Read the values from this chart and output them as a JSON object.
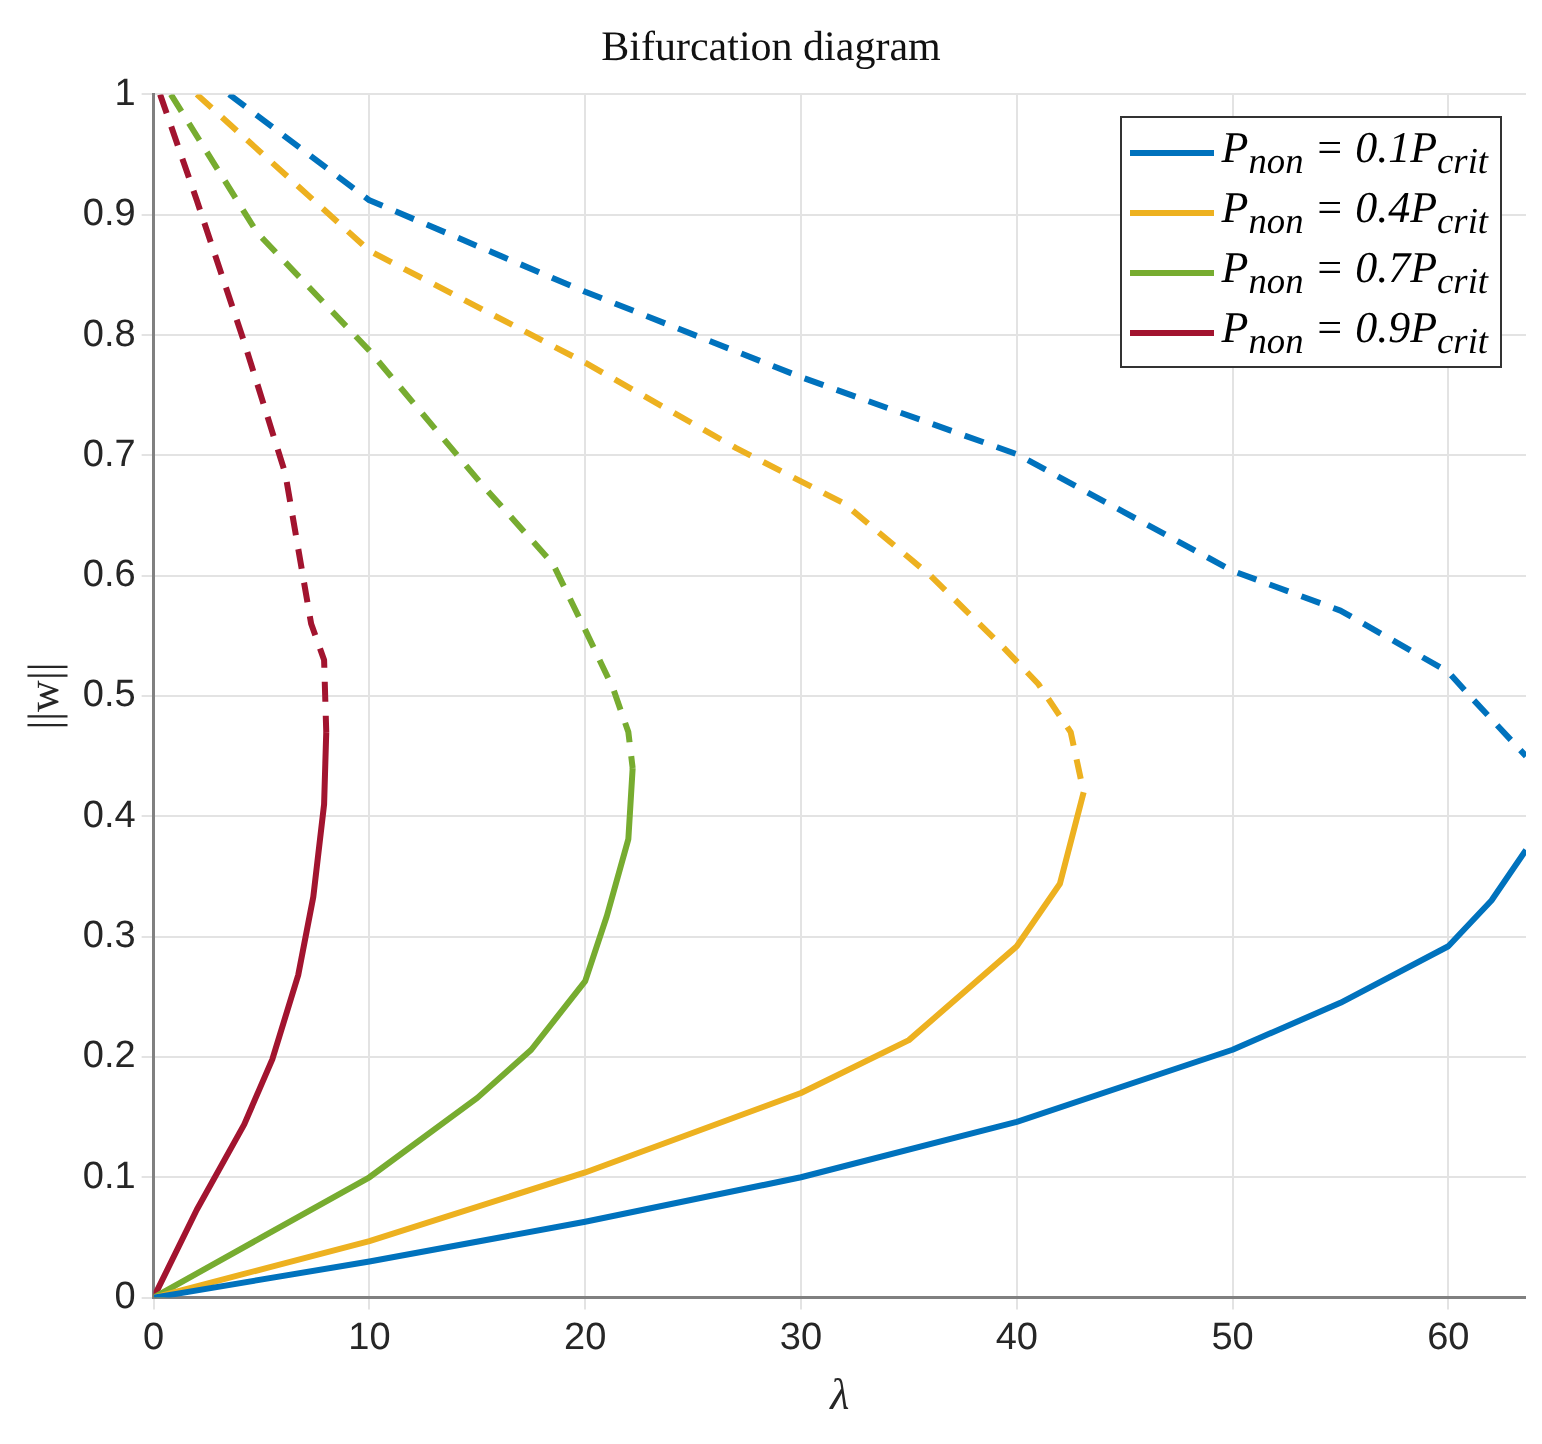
{
  "chart_data": {
    "type": "line",
    "title": "Bifurcation diagram",
    "xlabel": "λ",
    "ylabel": "||w||",
    "xlim": [
      0,
      63.6
    ],
    "xticks": [
      0,
      10,
      20,
      30,
      40,
      50,
      60
    ],
    "ylim": [
      0,
      1
    ],
    "yticks": [
      0,
      0.1,
      0.2,
      0.3,
      0.4,
      0.5,
      0.6,
      0.7,
      0.8,
      0.9,
      1
    ],
    "grid": true,
    "legend": "top right",
    "marker": "none",
    "series": [
      {
        "name": "P$_{non}$ = 0.1P$_{crit}$",
        "color": "#0072bd",
        "line_style": "solid",
        "x": [
          0,
          10,
          20,
          30,
          40,
          50,
          55,
          60,
          62,
          63.6
        ],
        "values": [
          0,
          0.03,
          0.063,
          0.1,
          0.146,
          0.206,
          0.245,
          0.292,
          0.33,
          0.372
        ]
      },
      {
        "name": "P$_{non}$ = 0.4P$_{crit}$",
        "color": "#edb120",
        "line_style": "solid",
        "x": [
          0,
          10,
          20,
          30,
          35,
          40,
          42,
          43.1
        ],
        "values": [
          0,
          0.047,
          0.104,
          0.17,
          0.214,
          0.292,
          0.344,
          0.42
        ]
      },
      {
        "name": "P$_{non}$ = 0.7P$_{crit}$",
        "color": "#77ac30",
        "line_style": "solid",
        "x": [
          0,
          5,
          10,
          15,
          17.5,
          20,
          21,
          22,
          22.2
        ],
        "values": [
          0,
          0.05,
          0.1,
          0.166,
          0.206,
          0.263,
          0.317,
          0.381,
          0.44
        ]
      },
      {
        "name": "P$_{non}$ = 0.9P$_{crit}$",
        "color": "#a2142f",
        "line_style": "solid",
        "x": [
          0,
          2,
          4.2,
          5.5,
          6.7,
          7.4,
          7.9,
          8
        ],
        "values": [
          0,
          0.073,
          0.144,
          0.198,
          0.268,
          0.333,
          0.41,
          0.47
        ]
      },
      {
        "color": "#0072bd",
        "line_style": "dashed",
        "x": [
          3.5,
          10,
          20,
          30,
          40,
          50,
          55,
          60,
          61,
          63.6
        ],
        "values": [
          1,
          0.912,
          0.836,
          0.765,
          0.701,
          0.604,
          0.571,
          0.52,
          0.5,
          0.45
        ]
      },
      {
        "color": "#edb120",
        "line_style": "dashed",
        "x": [
          2,
          10,
          20,
          27,
          32,
          36,
          39.4,
          41,
          42.5,
          43.1
        ],
        "values": [
          1,
          0.87,
          0.777,
          0.706,
          0.66,
          0.6,
          0.54,
          0.51,
          0.47,
          0.42
        ]
      },
      {
        "color": "#77ac30",
        "line_style": "dashed",
        "x": [
          0.8,
          4.8,
          10,
          15.3,
          18.5,
          20,
          21.3,
          22,
          22.2
        ],
        "values": [
          1,
          0.885,
          0.787,
          0.674,
          0.61,
          0.555,
          0.506,
          0.47,
          0.44
        ]
      },
      {
        "color": "#a2142f",
        "line_style": "dashed",
        "x": [
          0.3,
          2,
          4.2,
          6.1,
          7.3,
          7.9,
          8
        ],
        "values": [
          1,
          0.912,
          0.794,
          0.685,
          0.56,
          0.53,
          0.47
        ]
      }
    ]
  }
}
